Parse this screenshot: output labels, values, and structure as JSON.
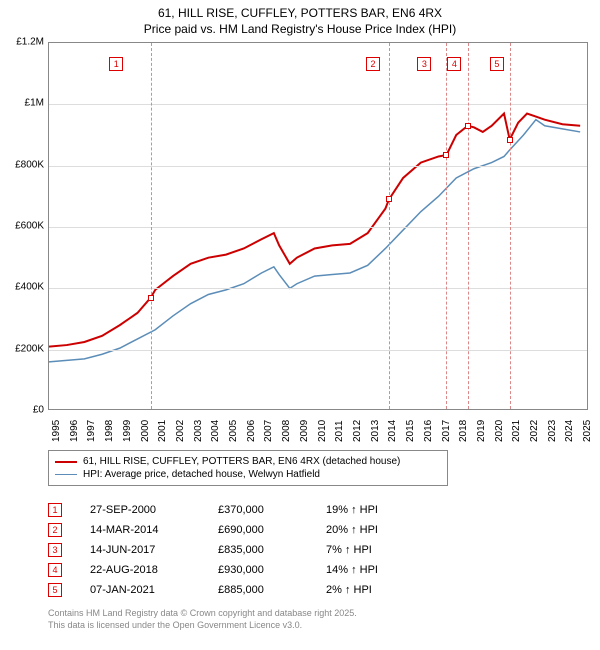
{
  "title_line1": "61, HILL RISE, CUFFLEY, POTTERS BAR, EN6 4RX",
  "title_line2": "Price paid vs. HM Land Registry's House Price Index (HPI)",
  "chart": {
    "type": "line",
    "background_color": "#ffffff",
    "grid_color": "#dddddd",
    "border_color": "#888888",
    "x_min": 1995,
    "x_max": 2025.5,
    "y_min": 0,
    "y_max": 1200000,
    "y_ticks": [
      0,
      200000,
      400000,
      600000,
      800000,
      1000000,
      1200000
    ],
    "y_labels": [
      "£0",
      "£200K",
      "£400K",
      "£600K",
      "£800K",
      "£1M",
      "£1.2M"
    ],
    "x_ticks": [
      1995,
      1996,
      1997,
      1998,
      1999,
      2000,
      2001,
      2002,
      2003,
      2004,
      2005,
      2006,
      2007,
      2008,
      2009,
      2010,
      2011,
      2012,
      2013,
      2014,
      2015,
      2016,
      2017,
      2018,
      2019,
      2020,
      2021,
      2022,
      2023,
      2024,
      2025
    ],
    "series": [
      {
        "name": "price_paid",
        "color": "#cc0000",
        "width": 2,
        "points": [
          [
            1995,
            210000
          ],
          [
            1996,
            215000
          ],
          [
            1997,
            225000
          ],
          [
            1998,
            245000
          ],
          [
            1999,
            280000
          ],
          [
            2000,
            320000
          ],
          [
            2000.75,
            370000
          ],
          [
            2001,
            395000
          ],
          [
            2002,
            440000
          ],
          [
            2003,
            480000
          ],
          [
            2004,
            500000
          ],
          [
            2005,
            510000
          ],
          [
            2006,
            530000
          ],
          [
            2007,
            560000
          ],
          [
            2007.7,
            580000
          ],
          [
            2008,
            540000
          ],
          [
            2008.6,
            480000
          ],
          [
            2009,
            500000
          ],
          [
            2010,
            530000
          ],
          [
            2011,
            540000
          ],
          [
            2012,
            545000
          ],
          [
            2013,
            580000
          ],
          [
            2014,
            660000
          ],
          [
            2014.2,
            690000
          ],
          [
            2015,
            760000
          ],
          [
            2016,
            810000
          ],
          [
            2017,
            830000
          ],
          [
            2017.45,
            835000
          ],
          [
            2018,
            900000
          ],
          [
            2018.65,
            930000
          ],
          [
            2019,
            925000
          ],
          [
            2019.5,
            910000
          ],
          [
            2020,
            930000
          ],
          [
            2020.7,
            970000
          ],
          [
            2021.02,
            885000
          ],
          [
            2021.5,
            940000
          ],
          [
            2022,
            970000
          ],
          [
            2022.5,
            960000
          ],
          [
            2023,
            950000
          ],
          [
            2024,
            935000
          ],
          [
            2025,
            930000
          ]
        ]
      },
      {
        "name": "hpi",
        "color": "#5b8db8",
        "width": 1.5,
        "points": [
          [
            1995,
            160000
          ],
          [
            1996,
            165000
          ],
          [
            1997,
            170000
          ],
          [
            1998,
            185000
          ],
          [
            1999,
            205000
          ],
          [
            2000,
            235000
          ],
          [
            2001,
            265000
          ],
          [
            2002,
            310000
          ],
          [
            2003,
            350000
          ],
          [
            2004,
            380000
          ],
          [
            2005,
            395000
          ],
          [
            2006,
            415000
          ],
          [
            2007,
            450000
          ],
          [
            2007.7,
            470000
          ],
          [
            2008,
            445000
          ],
          [
            2008.6,
            400000
          ],
          [
            2009,
            415000
          ],
          [
            2010,
            440000
          ],
          [
            2011,
            445000
          ],
          [
            2012,
            450000
          ],
          [
            2013,
            475000
          ],
          [
            2014,
            530000
          ],
          [
            2015,
            590000
          ],
          [
            2016,
            650000
          ],
          [
            2017,
            700000
          ],
          [
            2018,
            760000
          ],
          [
            2019,
            790000
          ],
          [
            2020,
            810000
          ],
          [
            2020.7,
            830000
          ],
          [
            2021,
            850000
          ],
          [
            2021.8,
            900000
          ],
          [
            2022.5,
            950000
          ],
          [
            2023,
            930000
          ],
          [
            2024,
            920000
          ],
          [
            2025,
            910000
          ]
        ]
      }
    ],
    "sale_markers": [
      {
        "idx": "1",
        "x": 2000.75,
        "y": 370000,
        "label_x": 1998.8,
        "label_y": 1130000
      },
      {
        "idx": "2",
        "x": 2014.2,
        "y": 690000,
        "label_x": 2013.3,
        "label_y": 1130000
      },
      {
        "idx": "3",
        "x": 2017.45,
        "y": 835000,
        "label_x": 2016.2,
        "label_y": 1130000
      },
      {
        "idx": "4",
        "x": 2018.65,
        "y": 930000,
        "label_x": 2017.9,
        "label_y": 1130000
      },
      {
        "idx": "5",
        "x": 2021.02,
        "y": 885000,
        "label_x": 2020.3,
        "label_y": 1130000
      }
    ]
  },
  "legend": [
    {
      "color": "#cc0000",
      "width": 2,
      "label": "61, HILL RISE, CUFFLEY, POTTERS BAR, EN6 4RX (detached house)"
    },
    {
      "color": "#5b8db8",
      "width": 1.5,
      "label": "HPI: Average price, detached house, Welwyn Hatfield"
    }
  ],
  "sales": [
    {
      "idx": "1",
      "date": "27-SEP-2000",
      "price": "£370,000",
      "pct": "19% ↑ HPI"
    },
    {
      "idx": "2",
      "date": "14-MAR-2014",
      "price": "£690,000",
      "pct": "20% ↑ HPI"
    },
    {
      "idx": "3",
      "date": "14-JUN-2017",
      "price": "£835,000",
      "pct": "7% ↑ HPI"
    },
    {
      "idx": "4",
      "date": "22-AUG-2018",
      "price": "£930,000",
      "pct": "14% ↑ HPI"
    },
    {
      "idx": "5",
      "date": "07-JAN-2021",
      "price": "£885,000",
      "pct": "2% ↑ HPI"
    }
  ],
  "footer_line1": "Contains HM Land Registry data © Crown copyright and database right 2025.",
  "footer_line2": "This data is licensed under the Open Government Licence v3.0."
}
